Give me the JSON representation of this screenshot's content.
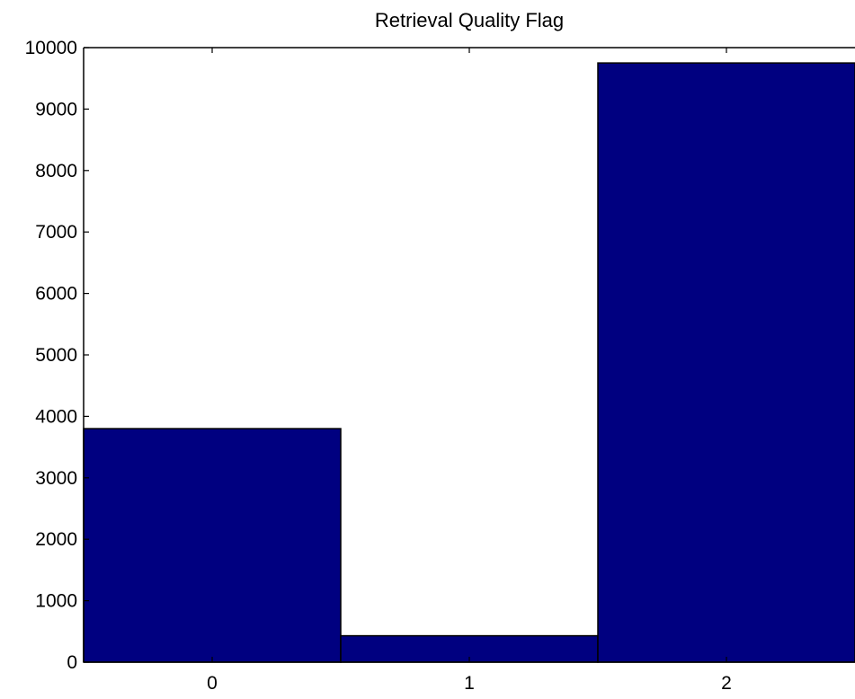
{
  "chart_data": {
    "type": "bar",
    "title": "Retrieval Quality Flag",
    "xlabel": "",
    "ylabel": "",
    "categories": [
      "0",
      "1",
      "2"
    ],
    "values": [
      3800,
      430,
      9750
    ],
    "ylim": [
      0,
      10000
    ],
    "xlim": [
      -0.5,
      2.5
    ],
    "yticks": [
      0,
      1000,
      2000,
      3000,
      4000,
      5000,
      6000,
      7000,
      8000,
      9000,
      10000
    ],
    "ytick_labels": [
      "0",
      "1000",
      "2000",
      "3000",
      "4000",
      "5000",
      "6000",
      "7000",
      "8000",
      "9000",
      "10000"
    ],
    "xticks": [
      0,
      1,
      2
    ],
    "xtick_labels": [
      "0",
      "1",
      "2"
    ],
    "bar_width": 1,
    "grid": false,
    "legend": "none",
    "bar_color": "#000080",
    "edge_color": "#000000"
  }
}
